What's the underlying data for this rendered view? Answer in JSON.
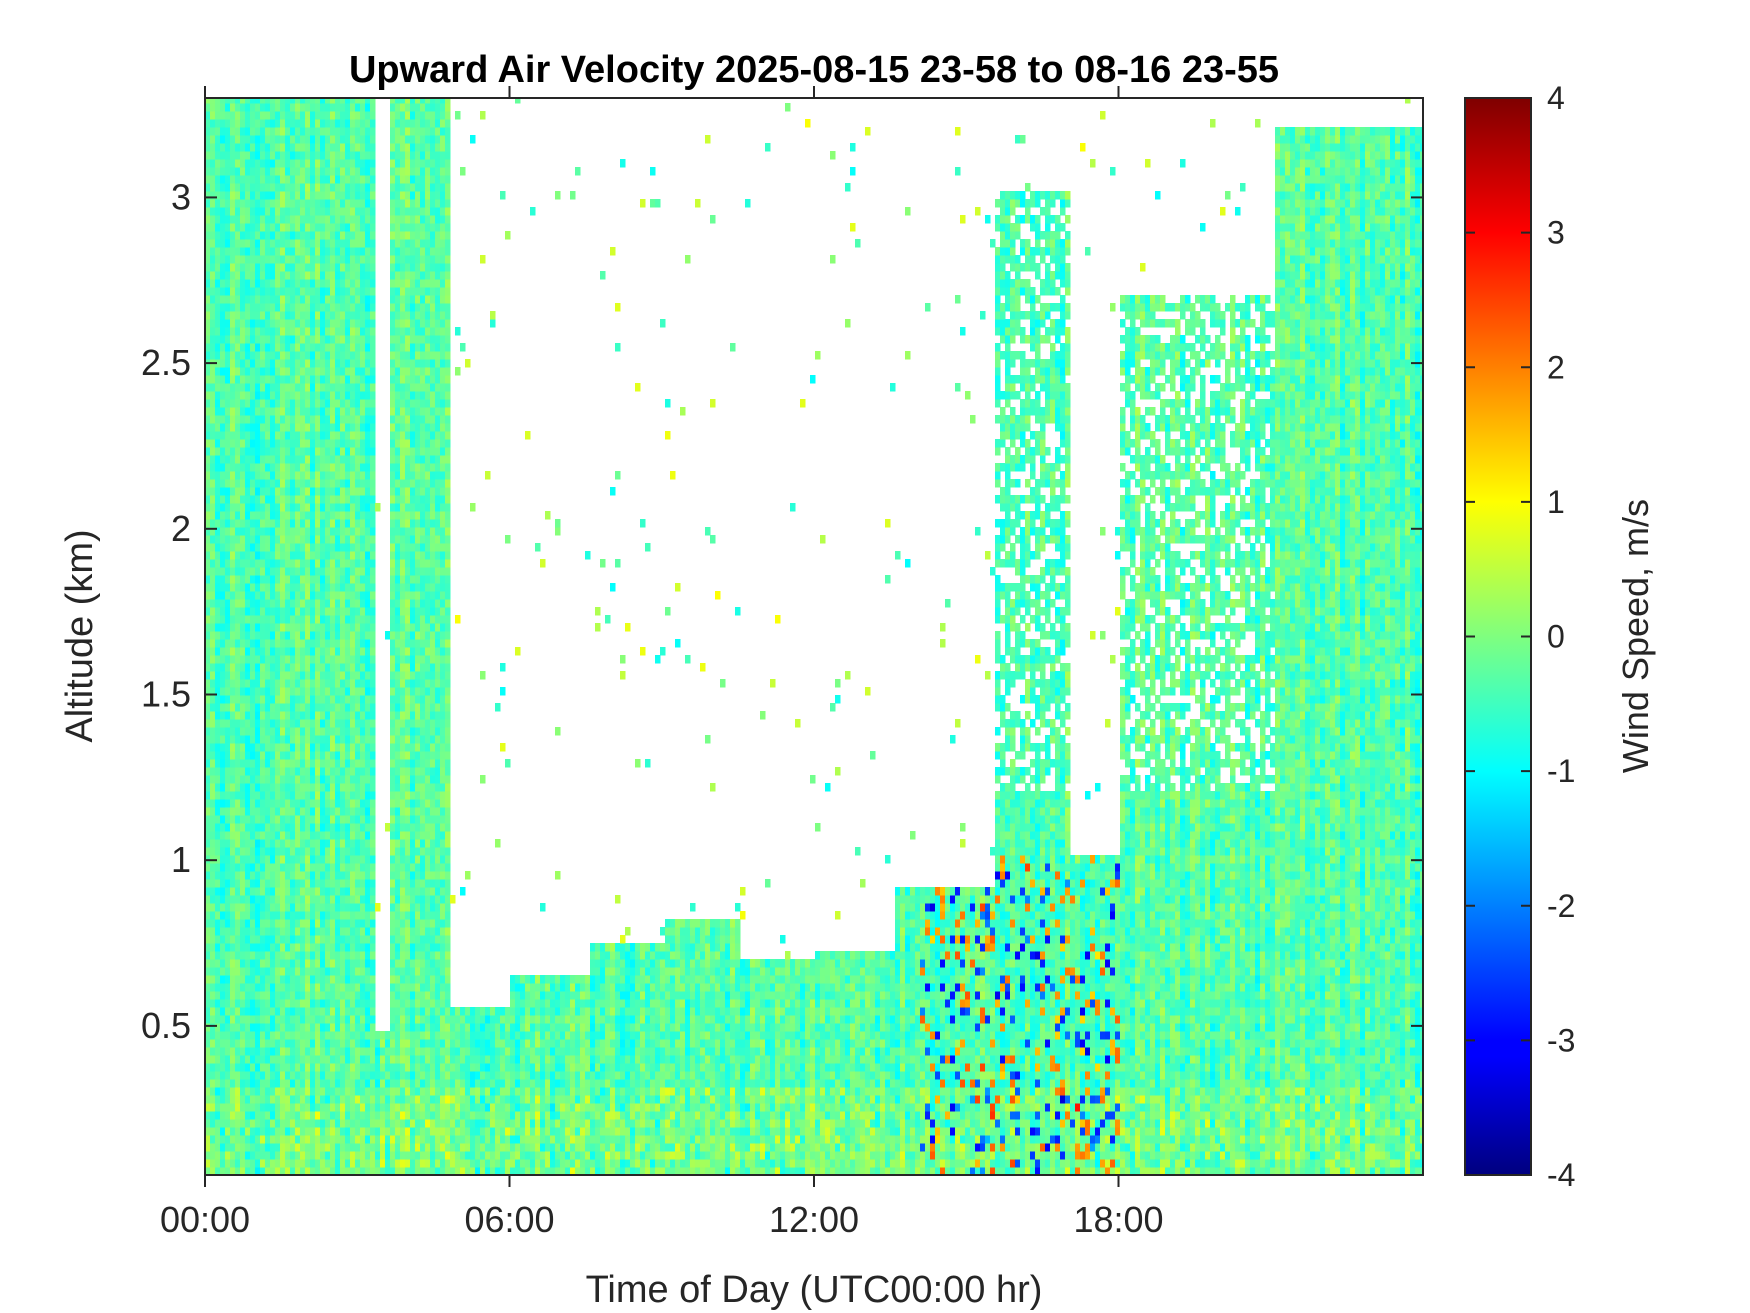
{
  "chart_data": {
    "type": "heatmap",
    "title": "Upward Air Velocity 2025-08-15 23-58 to 08-16 23-55",
    "xlabel": "Time of Day (UTC00:00 hr)",
    "ylabel": "Altitude (km)",
    "xlim_hours": [
      0,
      24
    ],
    "ylim_km": [
      0.05,
      3.3
    ],
    "x_ticks": [
      {
        "hour": 0,
        "label": "00:00"
      },
      {
        "hour": 6,
        "label": "06:00"
      },
      {
        "hour": 12,
        "label": "12:00"
      },
      {
        "hour": 18,
        "label": "18:00"
      }
    ],
    "y_ticks": [
      {
        "value": 0.5,
        "label": "0.5"
      },
      {
        "value": 1,
        "label": "1"
      },
      {
        "value": 1.5,
        "label": "1.5"
      },
      {
        "value": 2,
        "label": "2"
      },
      {
        "value": 2.5,
        "label": "2.5"
      },
      {
        "value": 3,
        "label": "3"
      }
    ],
    "colorbar": {
      "label": "Wind Speed, m/s",
      "range": [
        -4,
        4
      ],
      "colormap": "jet",
      "ticks": [
        {
          "value": 4,
          "label": "4"
        },
        {
          "value": 3,
          "label": "3"
        },
        {
          "value": 2,
          "label": "2"
        },
        {
          "value": 1,
          "label": "1"
        },
        {
          "value": 0,
          "label": "0"
        },
        {
          "value": -1,
          "label": "-1"
        },
        {
          "value": -2,
          "label": "-2"
        },
        {
          "value": -3,
          "label": "-3"
        },
        {
          "value": -4,
          "label": "-4"
        }
      ]
    },
    "data_top_profile_km": [
      {
        "start_hour": 0.0,
        "end_hour": 3.3,
        "top_km": 3.3
      },
      {
        "start_hour": 3.3,
        "end_hour": 3.6,
        "top_km": 0.48
      },
      {
        "start_hour": 3.6,
        "end_hour": 4.8,
        "top_km": 3.3
      },
      {
        "start_hour": 4.8,
        "end_hour": 6.0,
        "top_km": 0.55
      },
      {
        "start_hour": 6.0,
        "end_hour": 7.5,
        "top_km": 0.65
      },
      {
        "start_hour": 7.5,
        "end_hour": 9.0,
        "top_km": 0.75
      },
      {
        "start_hour": 9.0,
        "end_hour": 10.5,
        "top_km": 0.8
      },
      {
        "start_hour": 10.5,
        "end_hour": 12.0,
        "top_km": 0.68
      },
      {
        "start_hour": 12.0,
        "end_hour": 13.5,
        "top_km": 0.72
      },
      {
        "start_hour": 13.5,
        "end_hour": 15.5,
        "top_km": 0.9
      },
      {
        "start_hour": 15.5,
        "end_hour": 17.0,
        "top_km": 3.0
      },
      {
        "start_hour": 17.0,
        "end_hour": 18.0,
        "top_km": 1.0
      },
      {
        "start_hour": 18.0,
        "end_hour": 21.0,
        "top_km": 2.7
      },
      {
        "start_hour": 21.0,
        "end_hour": 24.0,
        "top_km": 3.2
      }
    ],
    "grid": false,
    "legend": "colorbar-right"
  }
}
